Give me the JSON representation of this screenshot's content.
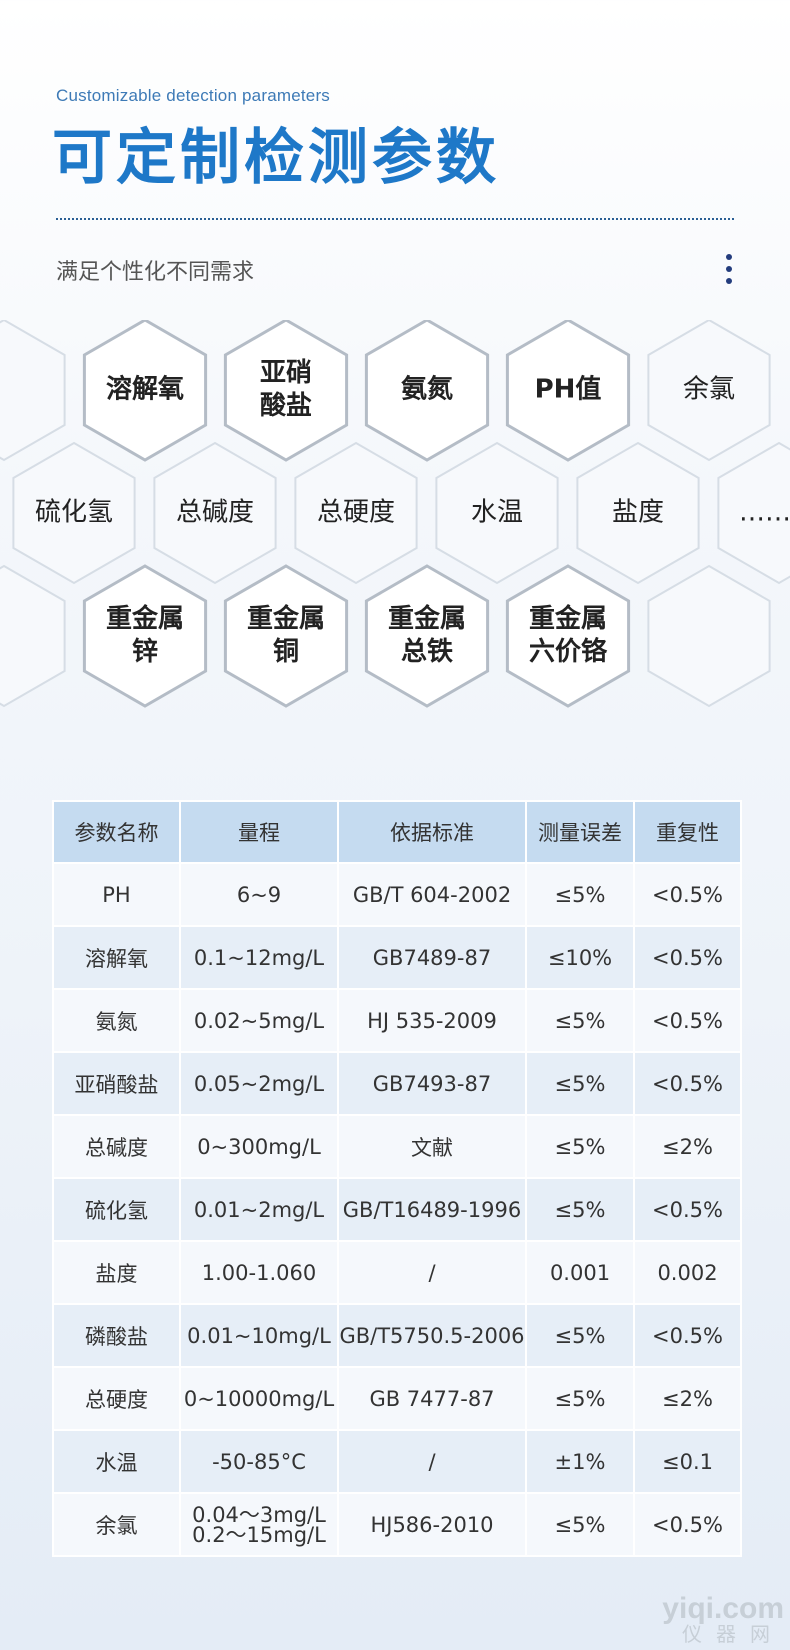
{
  "header": {
    "subtitle_en": "Customizable detection parameters",
    "title_cn": "可定制检测参数",
    "description_cn": "满足个性化不同需求"
  },
  "hexagons": {
    "row1": [
      "溶解氧",
      "亚硝\n酸盐",
      "氨氮",
      "PH值",
      "余氯"
    ],
    "row2": [
      "硫化氢",
      "总碱度",
      "总硬度",
      "水温",
      "盐度",
      "……"
    ],
    "row3": [
      "重金属\n锌",
      "重金属\n铜",
      "重金属\n总铁",
      "重金属\n六价铬"
    ]
  },
  "table": {
    "headers": [
      "参数名称",
      "量程",
      "依据标准",
      "测量误差",
      "重复性"
    ],
    "rows": [
      [
        "PH",
        "6~9",
        "GB/T 604-2002",
        "≤5%",
        "<0.5%"
      ],
      [
        "溶解氧",
        "0.1~12mg/L",
        "GB7489-87",
        "≤10%",
        "<0.5%"
      ],
      [
        "氨氮",
        "0.02~5mg/L",
        "HJ 535-2009",
        "≤5%",
        "<0.5%"
      ],
      [
        "亚硝酸盐",
        "0.05~2mg/L",
        "GB7493-87",
        "≤5%",
        "<0.5%"
      ],
      [
        "总碱度",
        "0~300mg/L",
        "文献",
        "≤5%",
        "≤2%"
      ],
      [
        "硫化氢",
        "0.01~2mg/L",
        "GB/T16489-1996",
        "≤5%",
        "<0.5%"
      ],
      [
        "盐度",
        "1.00-1.060",
        "/",
        "0.001",
        "0.002"
      ],
      [
        "磷酸盐",
        "0.01~10mg/L",
        "GB/T5750.5-2006",
        "≤5%",
        "<0.5%"
      ],
      [
        "总硬度",
        "0~10000mg/L",
        "GB 7477-87",
        "≤5%",
        "≤2%"
      ],
      [
        "水温",
        "-50-85°C",
        "/",
        "±1%",
        "≤0.1"
      ],
      [
        "余氯",
        "0.04～3mg/L\n0.2～15mg/L",
        "HJ586-2010",
        "≤5%",
        "<0.5%"
      ]
    ]
  },
  "watermark": {
    "line1": "yiqi.com",
    "line2": "仪器网"
  }
}
